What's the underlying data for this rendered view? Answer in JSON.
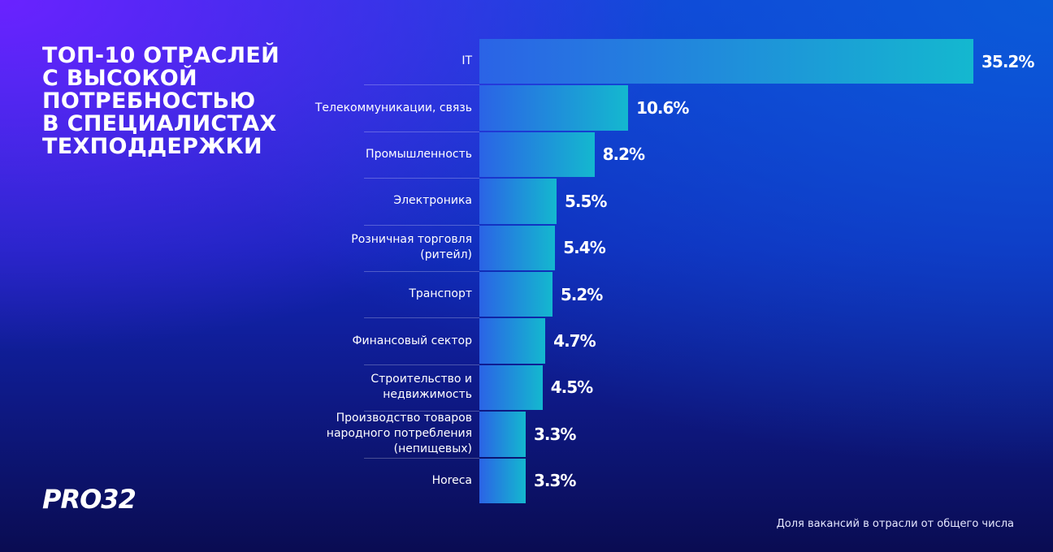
{
  "chart_data": {
    "type": "bar",
    "orientation": "horizontal",
    "title": "ТОП-10 ОТРАСЛЕЙ\nС ВЫСОКОЙ\nПОТРЕБНОСТЬЮ\nВ СПЕЦИАЛИСТАХ\nТЕХПОДДЕРЖКИ",
    "categories": [
      "IT",
      "Телекоммуникации, связь",
      "Промышленность",
      "Электроника",
      "Розничная торговля\n(ритейл)",
      "Транспорт",
      "Финансовый сектор",
      "Строительство и\nнедвижимость",
      "Производство товаров\nнародного потребления\n(непищевых)",
      "Horeca"
    ],
    "values": [
      35.2,
      10.6,
      8.2,
      5.5,
      5.4,
      5.2,
      4.7,
      4.5,
      3.3,
      3.3
    ],
    "value_labels": [
      "35.2%",
      "10.6%",
      "8.2%",
      "5.5%",
      "5.4%",
      "5.2%",
      "4.7%",
      "4.5%",
      "3.3%",
      "3.3%"
    ],
    "color": "#1a9fd6",
    "note": "Доля вакансий в отрасли от общего числа",
    "logo": "PRO32"
  }
}
